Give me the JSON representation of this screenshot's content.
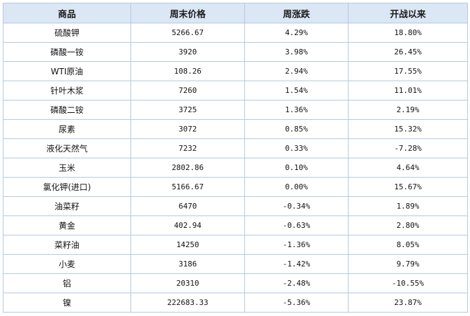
{
  "table": {
    "headers": [
      "商品",
      "周末价格",
      "周涨跌",
      "开战以来"
    ],
    "rows": [
      [
        "硫酸钾",
        "5266.67",
        "4.29%",
        "18.80%"
      ],
      [
        "磷酸一铵",
        "3920",
        "3.98%",
        "26.45%"
      ],
      [
        "WTI原油",
        "108.26",
        "2.94%",
        "17.55%"
      ],
      [
        "针叶木浆",
        "7260",
        "1.54%",
        "11.01%"
      ],
      [
        "磷酸二铵",
        "3725",
        "1.36%",
        "2.19%"
      ],
      [
        "尿素",
        "3072",
        "0.85%",
        "15.32%"
      ],
      [
        "液化天然气",
        "7232",
        "0.33%",
        "-7.28%"
      ],
      [
        "玉米",
        "2802.86",
        "0.10%",
        "4.64%"
      ],
      [
        "氯化钾(进口)",
        "5166.67",
        "0.00%",
        "15.67%"
      ],
      [
        "油菜籽",
        "6470",
        "-0.34%",
        "1.89%"
      ],
      [
        "黄金",
        "402.94",
        "-0.63%",
        "2.80%"
      ],
      [
        "菜籽油",
        "14250",
        "-1.36%",
        "8.05%"
      ],
      [
        "小麦",
        "3186",
        "-1.42%",
        "9.79%"
      ],
      [
        "铝",
        "20310",
        "-2.48%",
        "-10.55%"
      ],
      [
        "镍",
        "222683.33",
        "-5.36%",
        "23.87%"
      ]
    ]
  },
  "colors": {
    "positive": "#e03030",
    "negative": "#1f8a2a",
    "header_bg": "#dbe7f4",
    "border": "#b5c9de"
  }
}
